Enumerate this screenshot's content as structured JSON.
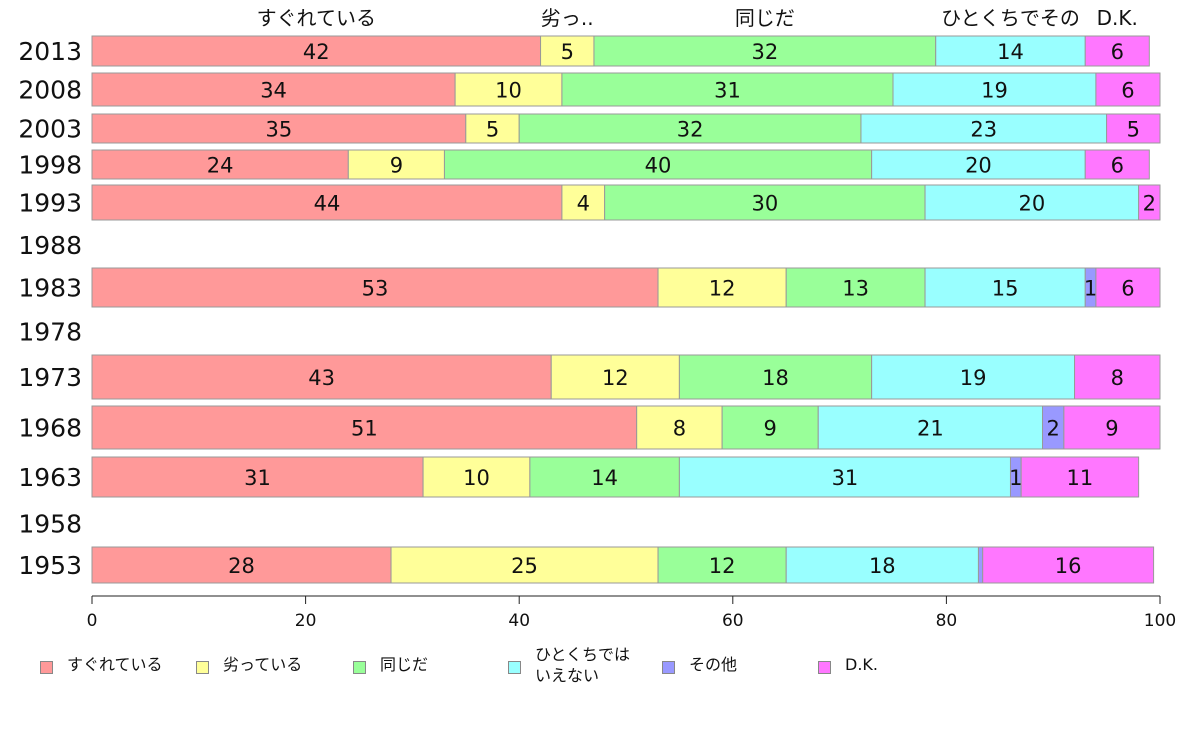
{
  "chart_data": {
    "type": "bar",
    "orientation": "horizontal",
    "stacked": true,
    "title": "",
    "xlabel": "",
    "ylabel": "",
    "xlim": [
      0,
      100
    ],
    "x_ticks": [
      "0",
      "20",
      "40",
      "60",
      "80",
      "100"
    ],
    "categories": [
      "2013",
      "2008",
      "2003",
      "1998",
      "1993",
      "1988",
      "1983",
      "1978",
      "1973",
      "1968",
      "1963",
      "1958",
      "1953"
    ],
    "top_labels": [
      "すぐれている",
      "劣っ..",
      "同じだ",
      "ひとくちでその",
      "D.K."
    ],
    "series": [
      {
        "name": "すぐれている",
        "color": "#ff9999",
        "values": [
          42,
          34,
          35,
          24,
          44,
          null,
          53,
          null,
          43,
          51,
          31,
          null,
          28
        ]
      },
      {
        "name": "劣っている",
        "color": "#ffff99",
        "values": [
          5,
          10,
          5,
          9,
          4,
          null,
          12,
          null,
          12,
          8,
          10,
          null,
          25
        ]
      },
      {
        "name": "同じだ",
        "color": "#99ff99",
        "values": [
          32,
          31,
          32,
          40,
          30,
          null,
          13,
          null,
          18,
          9,
          14,
          null,
          12
        ]
      },
      {
        "name": "ひとくちでは\nいえない",
        "color": "#99ffff",
        "values": [
          14,
          19,
          23,
          20,
          20,
          null,
          15,
          null,
          19,
          21,
          31,
          null,
          18
        ]
      },
      {
        "name": "その他",
        "color": "#9999ff",
        "values": [
          0,
          0,
          0,
          0,
          0,
          null,
          1,
          null,
          0,
          2,
          1,
          null,
          0.4
        ]
      },
      {
        "name": "D.K.",
        "color": "#ff77ff",
        "values": [
          6,
          6,
          5,
          6,
          2,
          null,
          6,
          null,
          8,
          9,
          11,
          null,
          16
        ]
      }
    ],
    "legend_position": "bottom",
    "grid": false
  }
}
